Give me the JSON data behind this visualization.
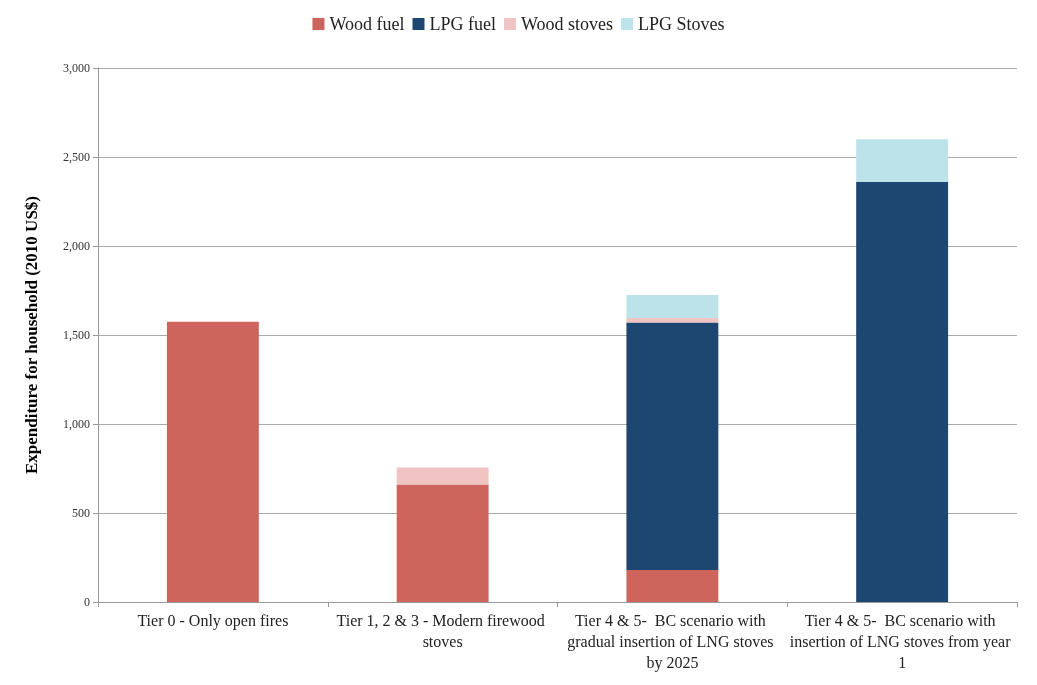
{
  "chart_data": {
    "type": "bar",
    "stacked": true,
    "ylabel": "Expenditure for household (2010 US$)",
    "categories": [
      "Tier 0 - Only open fires",
      "Tier 1, 2 & 3 - Modern firewood stoves",
      "Tier 4 & 5-  BC scenario with gradual insertion of LNG stoves by 2025",
      "Tier 4 & 5-  BC scenario with insertion of LNG stoves from year 1"
    ],
    "series": [
      {
        "name": "Wood fuel",
        "color": "#cd655c",
        "values": [
          1575,
          660,
          180,
          null
        ]
      },
      {
        "name": "LPG fuel",
        "color": "#1d4670",
        "values": [
          null,
          null,
          1390,
          2360
        ]
      },
      {
        "name": "Wood stoves",
        "color": "#f0c4c3",
        "values": [
          null,
          95,
          25,
          null
        ]
      },
      {
        "name": "LPG Stoves",
        "color": "#bde3ea",
        "values": [
          null,
          null,
          130,
          240
        ]
      }
    ],
    "ylim": [
      0,
      3000
    ],
    "yticks": [
      0,
      500,
      {
        "value": 1000,
        "label": "1,000"
      },
      {
        "value": 1500,
        "label": "1,500"
      },
      {
        "value": 2000,
        "label": "2,000"
      },
      {
        "value": 2500,
        "label": "2,500"
      },
      {
        "value": 3000,
        "label": "3,000"
      }
    ],
    "grid": "y",
    "legend": "top"
  }
}
